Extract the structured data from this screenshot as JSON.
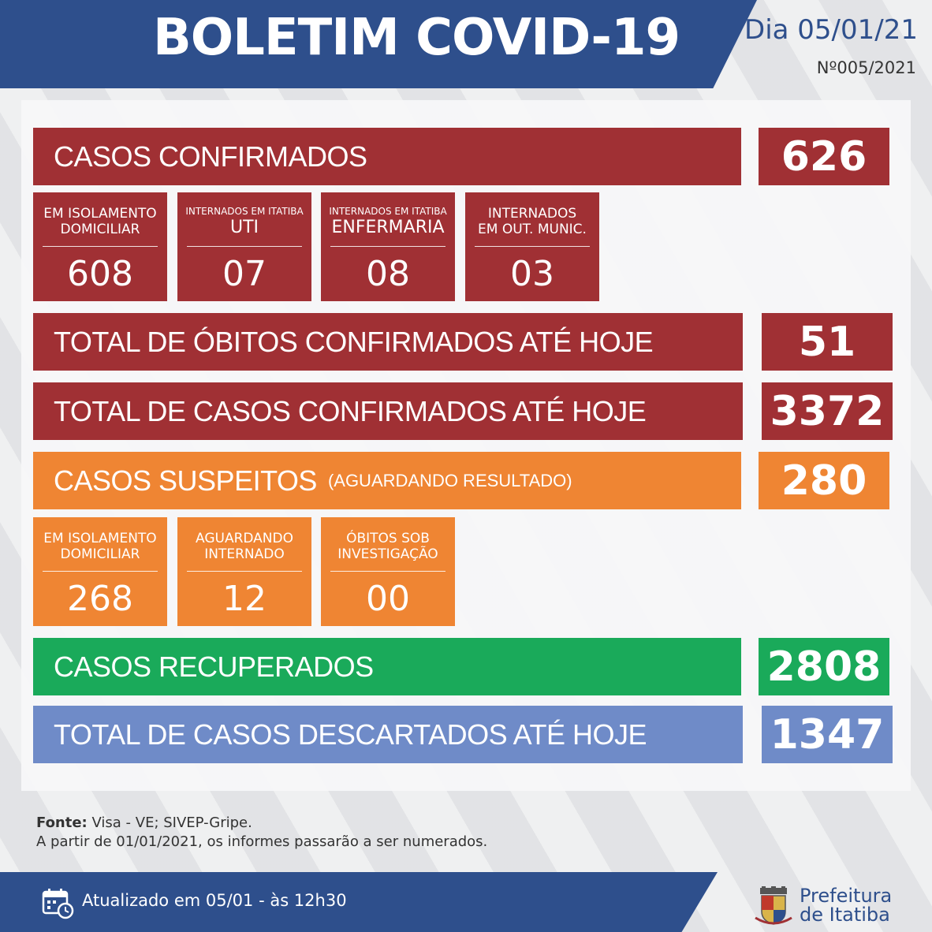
{
  "header": {
    "title": "BOLETIM COVID-19",
    "date": "Dia 05/01/21",
    "number": "Nº005/2021"
  },
  "confirmed": {
    "label": "CASOS CONFIRMADOS",
    "value": "626",
    "breakdown": [
      {
        "line1": "EM ISOLAMENTO",
        "line2": "DOMICILIAR",
        "value": "608"
      },
      {
        "line1": "INTERNADOS EM ITATIBA",
        "line2": "UTI",
        "value": "07"
      },
      {
        "line1": "INTERNADOS EM ITATIBA",
        "line2": "ENFERMARIA",
        "value": "08"
      },
      {
        "line1": "INTERNADOS",
        "line2": "EM OUT. MUNIC.",
        "value": "03"
      }
    ]
  },
  "deaths": {
    "label": "TOTAL DE ÓBITOS CONFIRMADOS ATÉ HOJE",
    "value": "51"
  },
  "total_confirmed": {
    "label": "TOTAL DE CASOS CONFIRMADOS ATÉ HOJE",
    "value": "3372"
  },
  "suspected": {
    "label": "CASOS SUSPEITOS",
    "sublabel": "(AGUARDANDO RESULTADO)",
    "value": "280",
    "breakdown": [
      {
        "line1": "EM ISOLAMENTO",
        "line2": "DOMICILIAR",
        "value": "268"
      },
      {
        "line1": "AGUARDANDO",
        "line2": "INTERNADO",
        "value": "12"
      },
      {
        "line1": "ÓBITOS SOB",
        "line2": "INVESTIGAÇÃO",
        "value": "00"
      }
    ]
  },
  "recovered": {
    "label": "CASOS RECUPERADOS",
    "value": "2808"
  },
  "discarded": {
    "label": "TOTAL DE CASOS DESCARTADOS ATÉ HOJE",
    "value": "1347"
  },
  "source": {
    "label": "Fonte:",
    "text": " Visa - VE; SIVEP-Gripe.",
    "note": "A partir de 01/01/2021, os informes passarão a ser numerados."
  },
  "footer": {
    "updated": "Atualizado em 05/01 - às 12h30",
    "logo_line1": "Prefeitura",
    "logo_line2": "de Itatiba"
  },
  "colors": {
    "header_blue": "#2e4f8c",
    "red": "#a03034",
    "orange": "#ef8533",
    "green": "#1aaa5a",
    "blue": "#6f8bc8"
  },
  "icons": [
    "calendar-clock-icon",
    "city-crest-icon"
  ]
}
